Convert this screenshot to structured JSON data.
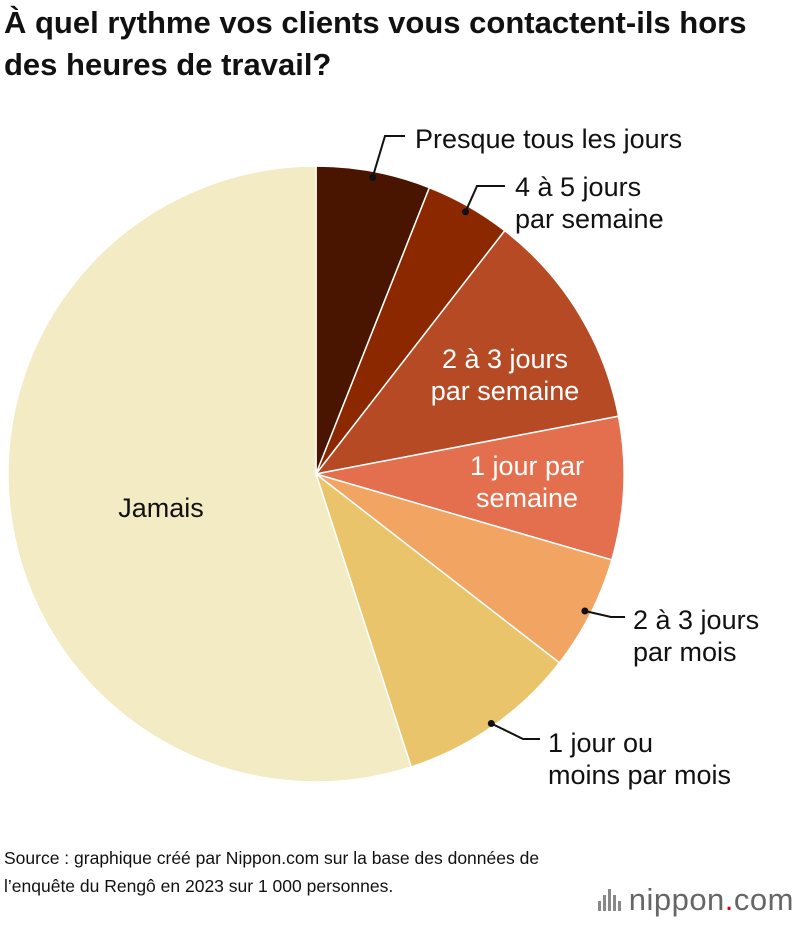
{
  "title": "À quel rythme vos clients vous contactent-ils hors des heures de travail?",
  "source": "Source : graphique créé par Nippon.com sur la base des données de l’enquête du Rengô en 2023 sur 1 000 personnes.",
  "logo": {
    "name": "nippon",
    "dot": ".",
    "suffix": "com"
  },
  "colors": {
    "presque": "#4a1500",
    "quatre_cinq": "#8b2800",
    "deux_trois_semaine": "#b54a25",
    "un_semaine": "#e46f4f",
    "deux_trois_mois": "#f2a462",
    "un_mois": "#e9c46a",
    "jamais": "#f2ebc4"
  },
  "chart_data": {
    "type": "pie",
    "start_angle": "12 o'clock, clockwise",
    "slices": [
      {
        "label": "Presque tous les jours",
        "value": 6.0,
        "color": "#4a1500"
      },
      {
        "label": "4 à 5 jours par semaine",
        "value": 4.5,
        "color": "#8b2800"
      },
      {
        "label": "2 à 3 jours par semaine",
        "value": 11.5,
        "color": "#b54a25"
      },
      {
        "label": "1 jour par semaine",
        "value": 7.5,
        "color": "#e46f4f"
      },
      {
        "label": "2 à 3 jours par mois",
        "value": 6.0,
        "color": "#f2a462"
      },
      {
        "label": "1 jour ou moins par mois",
        "value": 9.5,
        "color": "#e9c46a"
      },
      {
        "label": "Jamais",
        "value": 55.0,
        "color": "#f2ebc4"
      }
    ],
    "labels": [
      {
        "lines": [
          "Presque tous les jours"
        ]
      },
      {
        "lines": [
          "4 à 5 jours",
          "par semaine"
        ]
      },
      {
        "lines": [
          "2 à 3 jours",
          "par semaine"
        ]
      },
      {
        "lines": [
          "1 jour par",
          "semaine"
        ]
      },
      {
        "lines": [
          "2 à 3 jours",
          "par mois"
        ]
      },
      {
        "lines": [
          "1 jour ou",
          "moins par mois"
        ]
      },
      {
        "lines": [
          "Jamais"
        ]
      }
    ]
  }
}
